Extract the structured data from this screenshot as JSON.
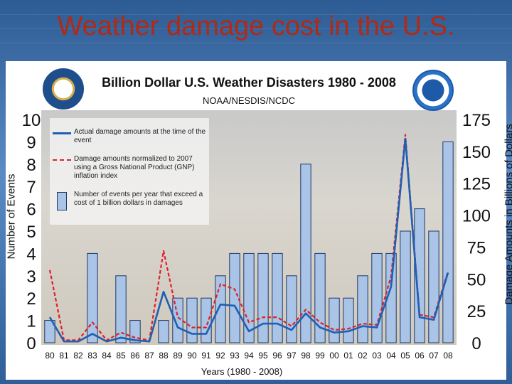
{
  "slide": {
    "title": "Weather damage cost in the U.S."
  },
  "colors": {
    "title": "#b12a14",
    "bar": "#a9c4e6",
    "bar_stroke": "#1f3a68",
    "actual_line": "#1f5fb5",
    "normalized_line": "#e0202a"
  },
  "chart_data": {
    "type": "bar",
    "title": "Billion Dollar U.S. Weather Disasters 1980 - 2008",
    "subtitle": "NOAA/NESDIS/NCDC",
    "xlabel": "Years (1980 - 2008)",
    "ylabel": "Number of Events",
    "y2label": "Damage Amounts in Billions of Dollars",
    "categories": [
      "80",
      "81",
      "82",
      "83",
      "84",
      "85",
      "86",
      "87",
      "88",
      "89",
      "90",
      "91",
      "92",
      "93",
      "94",
      "95",
      "96",
      "97",
      "98",
      "99",
      "00",
      "01",
      "02",
      "03",
      "04",
      "05",
      "06",
      "07",
      "08"
    ],
    "ylim": [
      0,
      10
    ],
    "yticks": [
      0,
      1,
      2,
      3,
      4,
      5,
      6,
      7,
      8,
      9,
      10
    ],
    "y2lim": [
      0,
      175
    ],
    "y2ticks": [
      0,
      25,
      50,
      75,
      100,
      125,
      150,
      175
    ],
    "legend": [
      "Actual damage amounts at the time of the event",
      "Damage amounts normalized to 2007 using a Gross National Product (GNP) inflation index",
      "Number of events per year that exceed a cost of 1 billion dollars in damages"
    ],
    "series": [
      {
        "name": "Number of events per year that exceed a cost of 1 billion dollars in damages",
        "type": "bar",
        "axis": "left",
        "values": [
          1,
          0,
          0,
          4,
          0,
          3,
          1,
          0,
          1,
          2,
          2,
          2,
          3,
          4,
          4,
          4,
          4,
          3,
          8,
          4,
          2,
          2,
          3,
          4,
          4,
          5,
          6,
          5,
          9
        ]
      },
      {
        "name": "Actual damage amounts at the time of the event",
        "type": "line",
        "axis": "right",
        "values": [
          20,
          1,
          1,
          7,
          1,
          4,
          2,
          1,
          40,
          12,
          7,
          7,
          30,
          29,
          9,
          15,
          15,
          10,
          23,
          12,
          8,
          9,
          13,
          12,
          44,
          160,
          20,
          18,
          55
        ]
      },
      {
        "name": "Damage amounts normalized to 2007 using a Gross National Product (GNP) inflation index",
        "type": "line",
        "axis": "right",
        "values": [
          57,
          2,
          2,
          16,
          2,
          8,
          4,
          2,
          72,
          20,
          12,
          12,
          46,
          42,
          16,
          20,
          20,
          13,
          26,
          16,
          10,
          11,
          15,
          14,
          52,
          163,
          22,
          20,
          56
        ]
      }
    ]
  }
}
